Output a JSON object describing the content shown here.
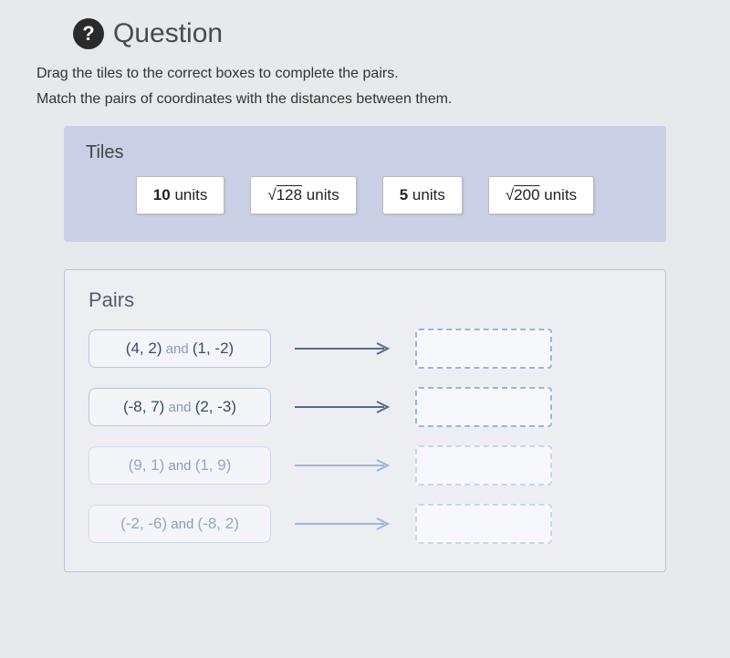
{
  "header": {
    "icon_label": "?",
    "title": "Question"
  },
  "instructions": {
    "line1": "Drag the tiles to the correct boxes to complete the pairs.",
    "line2": "Match the pairs of coordinates with the distances between them."
  },
  "tiles": {
    "label": "Tiles",
    "items": [
      {
        "prefix": "10",
        "suffix": " units",
        "sqrt": null
      },
      {
        "prefix": "",
        "suffix": " units",
        "sqrt": "128"
      },
      {
        "prefix": "5",
        "suffix": " units",
        "sqrt": null
      },
      {
        "prefix": "",
        "suffix": " units",
        "sqrt": "200"
      }
    ],
    "tile_bg": "#ffffff",
    "panel_bg": "#c9cfe4"
  },
  "pairs": {
    "label": "Pairs",
    "rows": [
      {
        "a": "(4, 2)",
        "b": "(1, -2)",
        "faded": false
      },
      {
        "a": "(-8, 7)",
        "b": "(2, -3)",
        "faded": false
      },
      {
        "a": "(9, 1)",
        "b": "(1, 9)",
        "faded": true
      },
      {
        "a": "(-2, -6)",
        "b": "(-8, 2)",
        "faded": true
      }
    ],
    "joiner": "and",
    "panel_border": "#b9c6e0",
    "drop_border": "#9cb4e2",
    "arrow_color": "#5a6a8a"
  },
  "colors": {
    "page_bg": "#e8e9ec",
    "text": "#3a3a3a"
  }
}
